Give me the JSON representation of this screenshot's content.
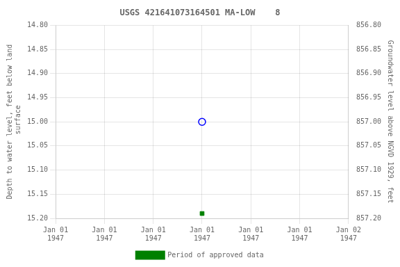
{
  "chart_data": {
    "type": "scatter",
    "title": "USGS 421641073164501 MA-LOW    8",
    "y_label": "Depth to water level, feet below land\n surface",
    "y2_label": "Groundwater level above NGVD 1929, feet",
    "categories": [
      "Jan 01\n1947",
      "Jan 01\n1947",
      "Jan 01\n1947",
      "Jan 01\n1947",
      "Jan 01\n1947",
      "Jan 01\n1947",
      "Jan 02\n1947"
    ],
    "series": [
      {
        "color": "blue",
        "marker": "open_circle",
        "values": [
          null,
          null,
          null,
          15.0,
          null,
          null,
          null
        ]
      },
      {
        "name": "Period of approved data",
        "color": "green",
        "marker": "square",
        "values": [
          null,
          null,
          null,
          15.19,
          null,
          null,
          null
        ]
      }
    ],
    "ylim": [
      15.2,
      14.8
    ],
    "yticks": [
      {
        "value": 14.8,
        "label": "14.80"
      },
      14.85,
      {
        "value": 14.9,
        "label": "14.90"
      },
      14.95,
      {
        "value": 15.0,
        "label": "15.00"
      },
      15.05,
      {
        "value": 15.1,
        "label": "15.10"
      },
      15.15,
      {
        "value": 15.2,
        "label": "15.20"
      }
    ],
    "y2lim": [
      857.2,
      856.8
    ],
    "y2ticks": [
      {
        "value": 857.2,
        "label": "857.20"
      },
      857.15,
      {
        "value": 857.1,
        "label": "857.10"
      },
      857.05,
      {
        "value": 857.0,
        "label": "857.00"
      },
      856.95,
      {
        "value": 856.9,
        "label": "856.90"
      },
      856.85,
      {
        "value": 856.8,
        "label": "856.80"
      }
    ],
    "grid": true,
    "legend": "bottom"
  }
}
